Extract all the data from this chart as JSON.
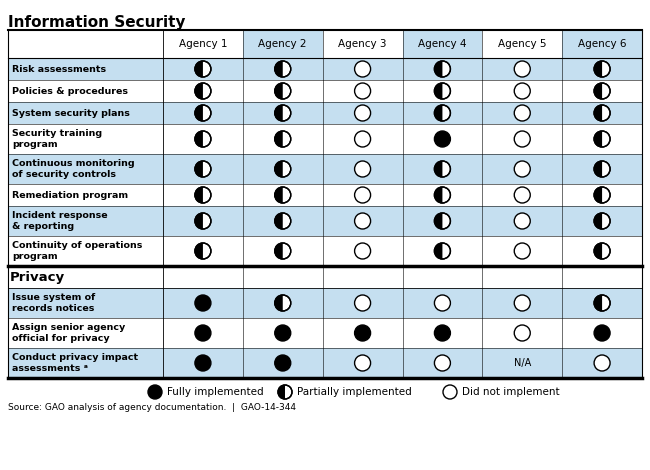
{
  "title": "Information Security",
  "columns": [
    "Agency 1",
    "Agency 2",
    "Agency 3",
    "Agency 4",
    "Agency 5",
    "Agency 6"
  ],
  "info_sec_rows": [
    {
      "label": "Risk assessments",
      "values": [
        "P",
        "P",
        "D",
        "P",
        "D",
        "P"
      ],
      "two_line": false
    },
    {
      "label": "Policies & procedures",
      "values": [
        "P",
        "P",
        "D",
        "P",
        "D",
        "P"
      ],
      "two_line": false
    },
    {
      "label": "System security plans",
      "values": [
        "P",
        "P",
        "D",
        "P",
        "D",
        "P"
      ],
      "two_line": false
    },
    {
      "label": "Security training\nprogram",
      "values": [
        "P",
        "P",
        "D",
        "F",
        "D",
        "P"
      ],
      "two_line": true
    },
    {
      "label": "Continuous monitoring\nof security controls",
      "values": [
        "P",
        "P",
        "D",
        "P",
        "D",
        "P"
      ],
      "two_line": true
    },
    {
      "label": "Remediation program",
      "values": [
        "P",
        "P",
        "D",
        "P",
        "D",
        "P"
      ],
      "two_line": false
    },
    {
      "label": "Incident response\n& reporting",
      "values": [
        "P",
        "P",
        "D",
        "P",
        "D",
        "P"
      ],
      "two_line": true
    },
    {
      "label": "Continuity of operations\nprogram",
      "values": [
        "P",
        "P",
        "D",
        "P",
        "D",
        "P"
      ],
      "two_line": true
    }
  ],
  "privacy_rows": [
    {
      "label": "Issue system of\nrecords notices",
      "values": [
        "F",
        "P",
        "D",
        "D",
        "D",
        "P"
      ],
      "two_line": true
    },
    {
      "label": "Assign senior agency\nofficial for privacy",
      "values": [
        "F",
        "F",
        "F",
        "F",
        "D",
        "F"
      ],
      "two_line": true
    },
    {
      "label": "Conduct privacy impact\nassessments ᵃ",
      "values": [
        "F",
        "F",
        "D",
        "D",
        "N/A",
        "D"
      ],
      "two_line": true
    }
  ],
  "legend_items": [
    {
      "symbol": "F",
      "label": "Fully implemented"
    },
    {
      "symbol": "P",
      "label": "Partially implemented"
    },
    {
      "symbol": "D",
      "label": "Did not implement"
    }
  ],
  "source_text": "Source: GAO analysis of agency documentation.  |  GAO-14-344",
  "light_blue": "#c5dff0",
  "white": "#ffffff",
  "title_fontsize": 11,
  "header_fontsize": 7.5,
  "label_fontsize": 6.8,
  "legend_fontsize": 7.5,
  "source_fontsize": 6.5
}
